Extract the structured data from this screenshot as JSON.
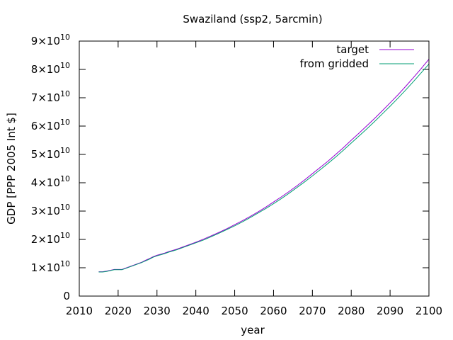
{
  "chart_data": {
    "type": "line",
    "title": "Swaziland (ssp2, 5arcmin)",
    "xlabel": "year",
    "ylabel": "GDP [PPP 2005 Int $]",
    "xlim": [
      2010,
      2100
    ],
    "ylim": [
      0,
      90000000000
    ],
    "x_ticks": [
      2010,
      2020,
      2030,
      2040,
      2050,
      2060,
      2070,
      2080,
      2090,
      2100
    ],
    "y_ticks": [
      {
        "value": 0,
        "mantissa": "0",
        "exponent": ""
      },
      {
        "value": 10000000000,
        "mantissa": "1×10",
        "exponent": "10"
      },
      {
        "value": 20000000000,
        "mantissa": "2×10",
        "exponent": "10"
      },
      {
        "value": 30000000000,
        "mantissa": "3×10",
        "exponent": "10"
      },
      {
        "value": 40000000000,
        "mantissa": "4×10",
        "exponent": "10"
      },
      {
        "value": 50000000000,
        "mantissa": "5×10",
        "exponent": "10"
      },
      {
        "value": 60000000000,
        "mantissa": "6×10",
        "exponent": "10"
      },
      {
        "value": 70000000000,
        "mantissa": "7×10",
        "exponent": "10"
      },
      {
        "value": 80000000000,
        "mantissa": "8×10",
        "exponent": "10"
      },
      {
        "value": 90000000000,
        "mantissa": "9×10",
        "exponent": "10"
      }
    ],
    "grid": false,
    "legend_position": "top-right",
    "x": [
      2015,
      2016,
      2017,
      2018,
      2019,
      2020,
      2021,
      2022,
      2023,
      2024,
      2025,
      2026,
      2027,
      2028,
      2029,
      2030,
      2031,
      2032,
      2033,
      2034,
      2035,
      2036,
      2037,
      2038,
      2039,
      2040,
      2042,
      2044,
      2046,
      2048,
      2050,
      2052,
      2054,
      2056,
      2058,
      2060,
      2062,
      2064,
      2066,
      2068,
      2070,
      2072,
      2074,
      2076,
      2078,
      2080,
      2082,
      2084,
      2086,
      2088,
      2090,
      2092,
      2094,
      2096,
      2098,
      2100
    ],
    "series": [
      {
        "name": "target",
        "color": "#9400d3",
        "values": [
          8600000000.0,
          8600000000.0,
          8800000000.0,
          9100000000.0,
          9400000000.0,
          9400000000.0,
          9400000000.0,
          9900000000.0,
          10400000000.0,
          10900000000.0,
          11400000000.0,
          11900000000.0,
          12600000000.0,
          13200000000.0,
          13900000000.0,
          14400000000.0,
          14800000000.0,
          15200000000.0,
          15700000000.0,
          16100000000.0,
          16500000000.0,
          17000000000.0,
          17500000000.0,
          18000000000.0,
          18500000000.0,
          19000000000.0,
          20100000000.0,
          21300000000.0,
          22500000000.0,
          23800000000.0,
          25200000000.0,
          26600000000.0,
          28100000000.0,
          29700000000.0,
          31400000000.0,
          33200000000.0,
          35000000000.0,
          36900000000.0,
          38900000000.0,
          41000000000.0,
          43200000000.0,
          45400000000.0,
          47600000000.0,
          50000000000.0,
          52400000000.0,
          55000000000.0,
          57500000000.0,
          60100000000.0,
          62700000000.0,
          65400000000.0,
          68200000000.0,
          71000000000.0,
          74000000000.0,
          77100000000.0,
          80300000000.0,
          83600000000.0
        ]
      },
      {
        "name": "from gridded",
        "color": "#009e73",
        "values": [
          8500000000.0,
          8500000000.0,
          8700000000.0,
          9000000000.0,
          9300000000.0,
          9300000000.0,
          9300000000.0,
          9800000000.0,
          10300000000.0,
          10800000000.0,
          11300000000.0,
          11800000000.0,
          12400000000.0,
          13000000000.0,
          13700000000.0,
          14200000000.0,
          14600000000.0,
          15000000000.0,
          15500000000.0,
          15900000000.0,
          16300000000.0,
          16800000000.0,
          17300000000.0,
          17800000000.0,
          18300000000.0,
          18800000000.0,
          19800000000.0,
          21000000000.0,
          22200000000.0,
          23500000000.0,
          24800000000.0,
          26200000000.0,
          27700000000.0,
          29300000000.0,
          30900000000.0,
          32600000000.0,
          34400000000.0,
          36300000000.0,
          38300000000.0,
          40300000000.0,
          42400000000.0,
          44600000000.0,
          46800000000.0,
          49100000000.0,
          51500000000.0,
          54000000000.0,
          56500000000.0,
          59000000000.0,
          61600000000.0,
          64300000000.0,
          67000000000.0,
          69800000000.0,
          72700000000.0,
          75700000000.0,
          78800000000.0,
          81900000000.0
        ]
      }
    ]
  }
}
